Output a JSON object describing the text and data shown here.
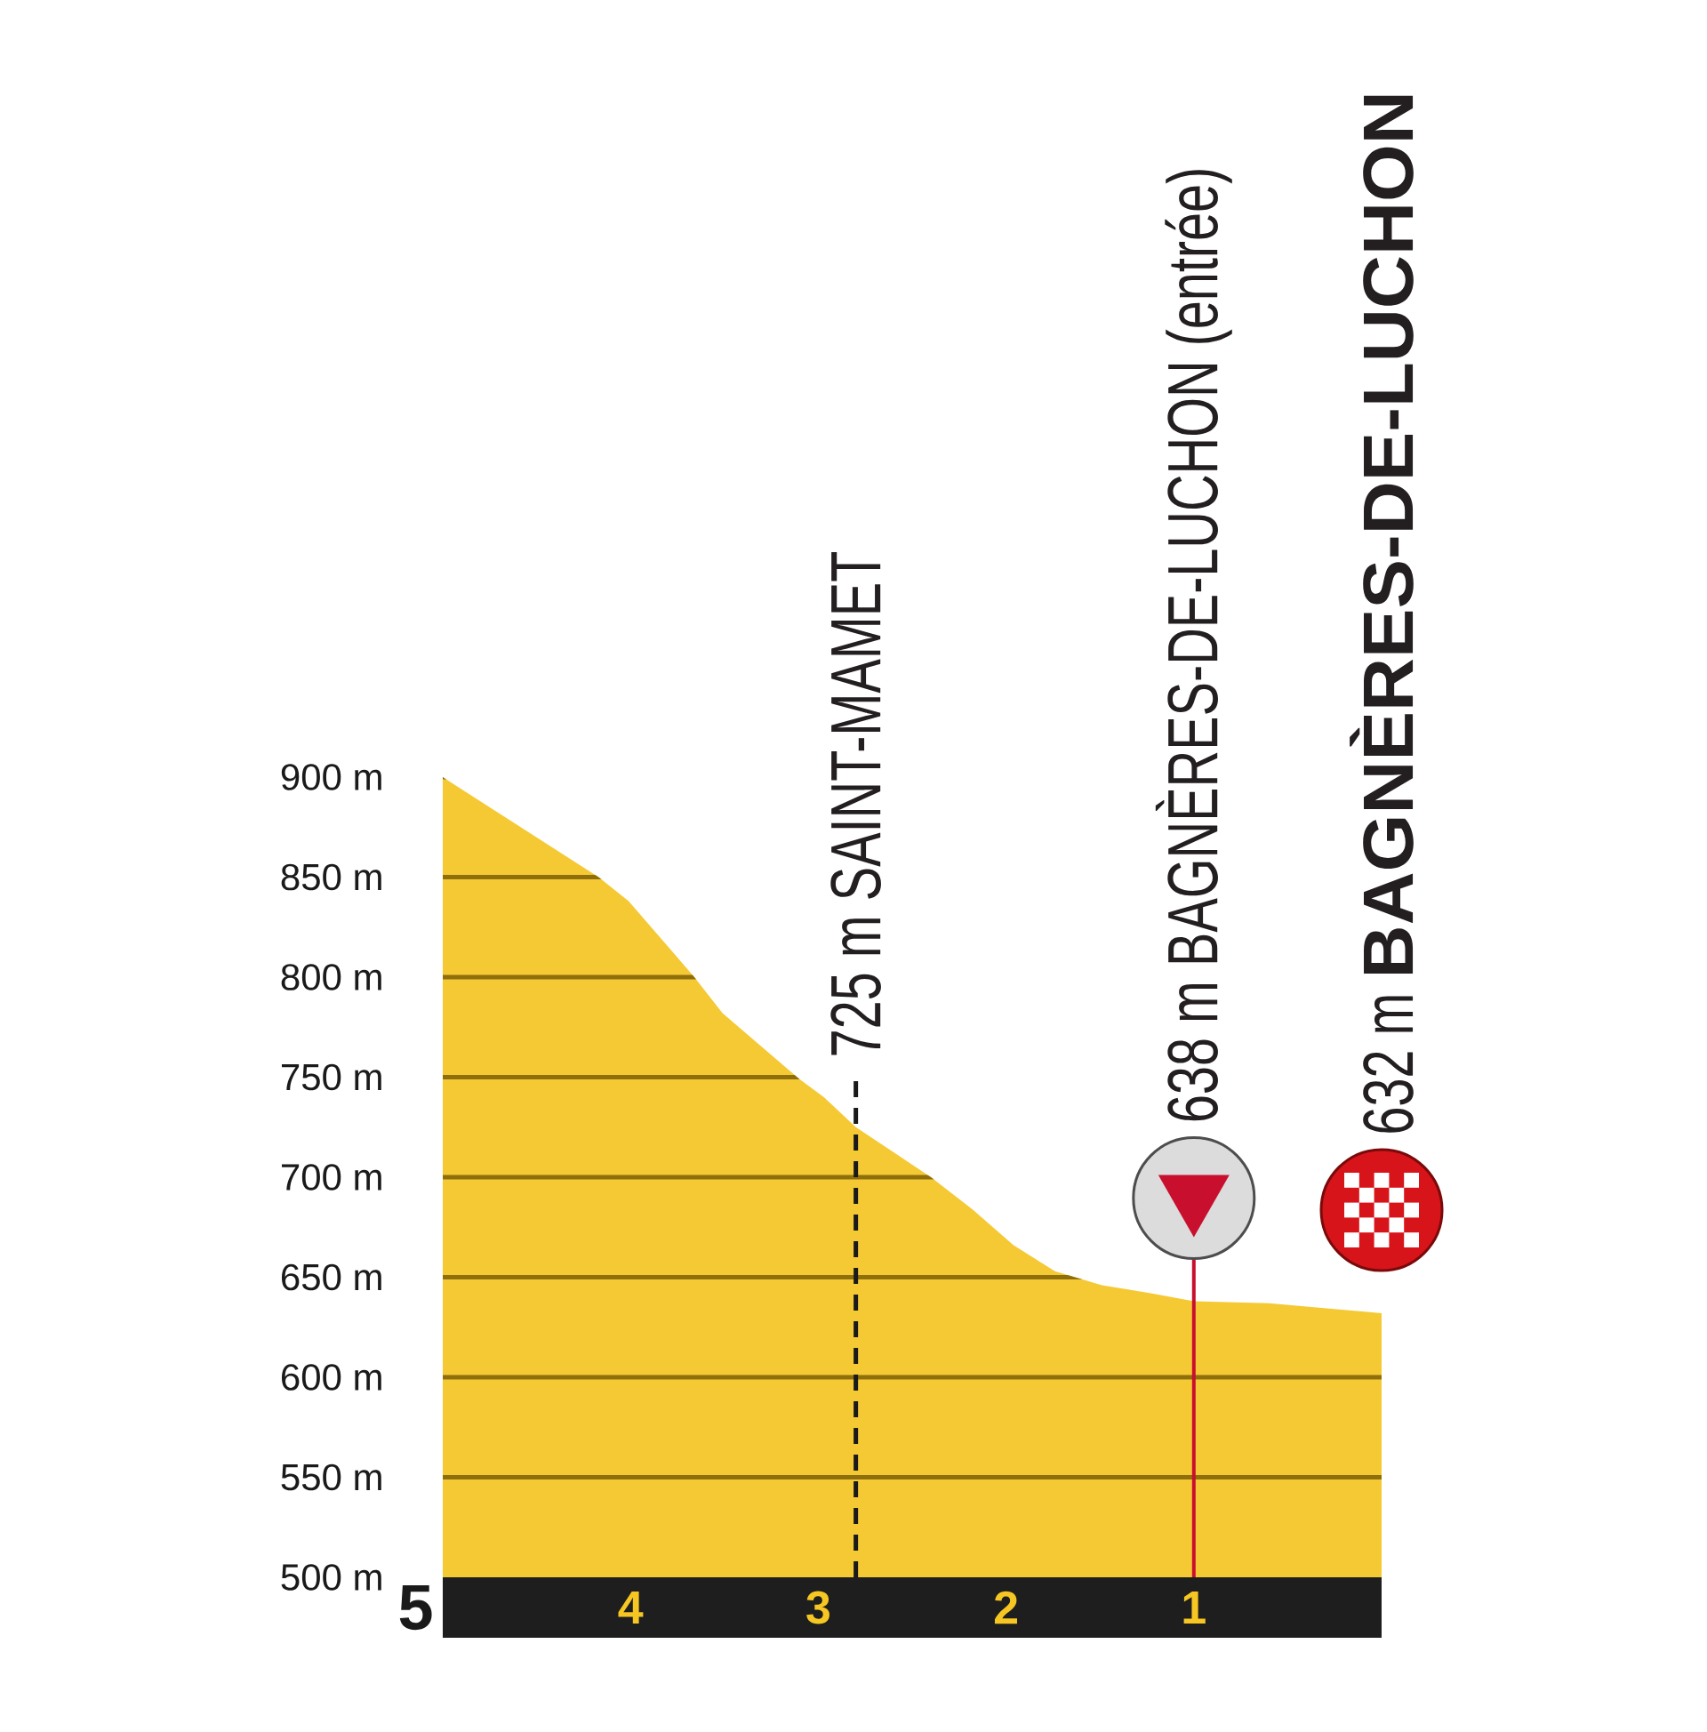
{
  "chart_data": {
    "type": "area",
    "x": [
      5,
      4.17,
      4.01,
      3.66,
      3.51,
      3.1,
      2.97,
      2.8,
      2.4,
      2.18,
      1.96,
      1.74,
      1.49,
      1.23,
      1,
      0.6,
      0
    ],
    "values": [
      900,
      850,
      838,
      800,
      782,
      749,
      740,
      725,
      700,
      684,
      666,
      653,
      646,
      642,
      638,
      637,
      632
    ],
    "color": "#f5c934",
    "xlim": [
      5,
      0
    ],
    "xticks": [
      5,
      4,
      3,
      2,
      1
    ],
    "ylim": [
      500,
      900
    ],
    "yticks": [
      {
        "value": 500,
        "label": "500 m"
      },
      {
        "value": 550,
        "label": "550 m"
      },
      {
        "value": 600,
        "label": "600 m"
      },
      {
        "value": 650,
        "label": "650 m"
      },
      {
        "value": 700,
        "label": "700 m"
      },
      {
        "value": 750,
        "label": "750 m"
      },
      {
        "value": 800,
        "label": "800 m"
      },
      {
        "value": 850,
        "label": "850 m"
      },
      {
        "value": 900,
        "label": "900 m"
      }
    ],
    "grid": "y",
    "ref_lines": [
      {
        "axis": "x",
        "value": 2.8,
        "label": "725 m SAINT-MAMET",
        "color": "#1a1a1a",
        "line_style": "dashed"
      },
      {
        "axis": "x",
        "value": 1,
        "label": "638 m BAGNÈRES-DE-LUCHON (entrée)",
        "color": "#c8102e",
        "line_style": "solid"
      }
    ],
    "annotations": [
      {
        "text": "632 m **BAGNÈRES-DE-LUCHON**",
        "x": 0,
        "y": 632
      }
    ]
  }
}
